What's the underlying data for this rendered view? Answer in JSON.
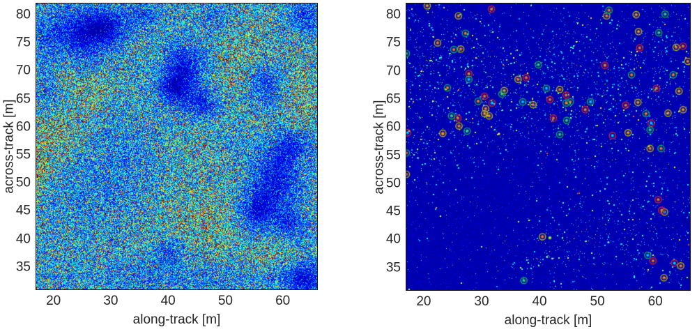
{
  "page": {
    "background": "#ffffff"
  },
  "chart_data": [
    {
      "id": "sonar-intensity-image",
      "type": "heatmap",
      "title": "",
      "xlabel": "along-track [m]",
      "ylabel": "across-track [m]",
      "xlim": [
        17,
        66
      ],
      "ylim": [
        31,
        82
      ],
      "xticks": [
        20,
        30,
        40,
        50,
        60
      ],
      "yticks": [
        35,
        40,
        45,
        50,
        55,
        60,
        65,
        70,
        75,
        80
      ],
      "colormap": "jet",
      "grid": false,
      "legend": "none",
      "description": "Speckled sonar/SAR seafloor intensity image (jet colormap): light-blue/cyan speckle background with darker navy rock/shadow patches and bright yellow-green reflective streaks.",
      "base_level": 0.4,
      "bright_regions": [
        {
          "x": 20,
          "y": 60,
          "rx": 3,
          "ry": 4.5,
          "a": 0.22
        },
        {
          "x": 26.5,
          "y": 66.5,
          "rx": 2.5,
          "ry": 2.5,
          "a": 0.18
        },
        {
          "x": 22,
          "y": 70.5,
          "rx": 1.5,
          "ry": 4,
          "a": 0.14
        },
        {
          "x": 17.5,
          "y": 52,
          "rx": 1.2,
          "ry": 2.5,
          "a": 0.25
        },
        {
          "x": 46,
          "y": 43,
          "rx": 6,
          "ry": 4,
          "a": 0.13
        },
        {
          "x": 59.5,
          "y": 38,
          "rx": 3.5,
          "ry": 2.5,
          "a": 0.14
        },
        {
          "x": 53,
          "y": 71.5,
          "rx": 3.5,
          "ry": 4,
          "a": 0.1
        },
        {
          "x": 63,
          "y": 62,
          "rx": 2,
          "ry": 6,
          "a": 0.1
        },
        {
          "x": 55,
          "y": 62,
          "rx": 8,
          "ry": 10,
          "a": 0.05
        },
        {
          "x": 44,
          "y": 56,
          "rx": 5,
          "ry": 4,
          "a": 0.06
        }
      ],
      "dark_regions": [
        {
          "x": 23,
          "y": 75.5,
          "rx": 4.5,
          "ry": 4,
          "a": 0.3
        },
        {
          "x": 20,
          "y": 65,
          "rx": 2.5,
          "ry": 3,
          "a": 0.22
        },
        {
          "x": 29.5,
          "y": 78,
          "rx": 3,
          "ry": 2.5,
          "a": 0.25
        },
        {
          "x": 36,
          "y": 80,
          "rx": 2,
          "ry": 1.5,
          "a": 0.18
        },
        {
          "x": 43,
          "y": 70.5,
          "rx": 3,
          "ry": 3.5,
          "a": 0.3
        },
        {
          "x": 46,
          "y": 64,
          "rx": 2.5,
          "ry": 2,
          "a": 0.25
        },
        {
          "x": 40.5,
          "y": 66.5,
          "rx": 2,
          "ry": 2,
          "a": 0.2
        },
        {
          "x": 57,
          "y": 67.5,
          "rx": 2.5,
          "ry": 3,
          "a": 0.28
        },
        {
          "x": 64,
          "y": 79.5,
          "rx": 2.5,
          "ry": 2,
          "a": 0.22
        },
        {
          "x": 59,
          "y": 51,
          "rx": 3.5,
          "ry": 4.5,
          "a": 0.3
        },
        {
          "x": 62.5,
          "y": 57,
          "rx": 2.5,
          "ry": 2.5,
          "a": 0.25
        },
        {
          "x": 55,
          "y": 44.5,
          "rx": 2.5,
          "ry": 3,
          "a": 0.28
        },
        {
          "x": 61.5,
          "y": 42,
          "rx": 2.5,
          "ry": 2.5,
          "a": 0.22
        },
        {
          "x": 63.5,
          "y": 33,
          "rx": 3,
          "ry": 2.5,
          "a": 0.28
        },
        {
          "x": 40,
          "y": 38,
          "rx": 2,
          "ry": 2,
          "a": 0.22
        },
        {
          "x": 34,
          "y": 55,
          "rx": 7,
          "ry": 6,
          "a": 0.1
        },
        {
          "x": 25,
          "y": 47,
          "rx": 6,
          "ry": 5,
          "a": 0.08
        },
        {
          "x": 42,
          "y": 33,
          "rx": 14,
          "ry": 2,
          "a": 0.12
        },
        {
          "x": 52,
          "y": 57.5,
          "rx": 3.5,
          "ry": 2.5,
          "a": 0.1
        },
        {
          "x": 48,
          "y": 80,
          "rx": 2,
          "ry": 1.5,
          "a": 0.15
        }
      ]
    },
    {
      "id": "detection-map",
      "type": "scatter",
      "title": "",
      "xlabel": "along-track [m]",
      "ylabel": "across-track [m]",
      "xlim": [
        17,
        66
      ],
      "ylim": [
        31,
        82
      ],
      "xticks": [
        20,
        30,
        40,
        50,
        60
      ],
      "yticks": [
        35,
        40,
        45,
        50,
        55,
        60,
        65,
        70,
        75,
        80
      ],
      "colormap": "jet",
      "grid": false,
      "legend": "none",
      "description": "Dark navy detection map of the same scene: sparse cyan speckle highlights plus circled detections (green, red and yellow rings around bright contacts).",
      "background_level": 0.045,
      "dot_count": 2600,
      "classes": {
        "g": "#00b44c",
        "r": "#e02020",
        "y": "#bdb300"
      },
      "density_regions": [
        {
          "x": 30,
          "y": 64,
          "rx": 14,
          "ry": 7,
          "a": 0.55
        },
        {
          "x": 52,
          "y": 66,
          "rx": 12,
          "ry": 6,
          "a": 0.5
        },
        {
          "x": 58,
          "y": 45,
          "rx": 9,
          "ry": 9,
          "a": 0.5
        },
        {
          "x": 47,
          "y": 38,
          "rx": 6,
          "ry": 4,
          "a": 0.35
        },
        {
          "x": 40,
          "y": 37,
          "rx": 3,
          "ry": 3,
          "a": 0.5
        },
        {
          "x": 19,
          "y": 55,
          "rx": 2.5,
          "ry": 4,
          "a": 0.7
        },
        {
          "x": 19,
          "y": 77,
          "rx": 4,
          "ry": 5,
          "a": 0.45
        },
        {
          "x": 45,
          "y": 75,
          "rx": 10,
          "ry": 6,
          "a": 0.3
        },
        {
          "x": 62,
          "y": 75,
          "rx": 5,
          "ry": 6,
          "a": 0.35
        },
        {
          "x": 25,
          "y": 70,
          "rx": 6,
          "ry": 5,
          "a": 0.4
        }
      ],
      "bright_spots": [
        {
          "x": 41.8,
          "y": 40.3,
          "r": 3.5,
          "color": "#80e000"
        },
        {
          "x": 41.3,
          "y": 36.9,
          "r": 2.5,
          "color": "#40e0a0"
        },
        {
          "x": 42.2,
          "y": 36.6,
          "r": 2.0,
          "color": "#60e080"
        },
        {
          "x": 51.9,
          "y": 39.5,
          "r": 2.5,
          "color": "#00c8ff"
        },
        {
          "x": 23.3,
          "y": 58.8,
          "r": 3.0,
          "color": "#ff9000"
        },
        {
          "x": 33.0,
          "y": 58.8,
          "r": 2.5,
          "color": "#ffb000"
        },
        {
          "x": 19.0,
          "y": 54.5,
          "r": 2.0,
          "color": "#00c8ff"
        }
      ],
      "detections": [
        [
          20.6,
          81.6,
          "y"
        ],
        [
          26.0,
          79.8,
          "y"
        ],
        [
          22.4,
          75.0,
          "y"
        ],
        [
          26.4,
          73.9,
          "y"
        ],
        [
          36.3,
          68.5,
          "y"
        ],
        [
          33.9,
          66.5,
          "y"
        ],
        [
          43.5,
          66.7,
          "y"
        ],
        [
          38.9,
          64.0,
          "y"
        ],
        [
          30.7,
          63.3,
          "y"
        ],
        [
          30.5,
          62.4,
          "y"
        ],
        [
          31.3,
          62.0,
          "y"
        ],
        [
          26.1,
          60.2,
          "y"
        ],
        [
          23.3,
          58.9,
          "y"
        ],
        [
          51.6,
          79.8,
          "y"
        ],
        [
          56.7,
          80.0,
          "y"
        ],
        [
          57.1,
          77.0,
          "y"
        ],
        [
          63.6,
          74.2,
          "y"
        ],
        [
          65.6,
          71.7,
          "y"
        ],
        [
          64.1,
          66.4,
          "y"
        ],
        [
          57.0,
          64.4,
          "y"
        ],
        [
          64.8,
          63.1,
          "y"
        ],
        [
          62.2,
          62.5,
          "y"
        ],
        [
          55.3,
          59.0,
          "y"
        ],
        [
          59.1,
          56.2,
          "y"
        ],
        [
          17.0,
          51.6,
          "y"
        ],
        [
          40.5,
          40.5,
          "y"
        ],
        [
          61.6,
          44.9,
          "y"
        ],
        [
          64.4,
          35.3,
          "y"
        ],
        [
          61.5,
          33.2,
          "y"
        ],
        [
          31.7,
          81.0,
          "r"
        ],
        [
          27.8,
          69.5,
          "r"
        ],
        [
          37.7,
          68.8,
          "r"
        ],
        [
          30.5,
          65.5,
          "r"
        ],
        [
          31.8,
          64.3,
          "r"
        ],
        [
          25.9,
          61.6,
          "r"
        ],
        [
          17.2,
          59.0,
          "r"
        ],
        [
          64.8,
          74.4,
          "r"
        ],
        [
          57.3,
          74.1,
          "r"
        ],
        [
          51.3,
          71.0,
          "r"
        ],
        [
          44.6,
          65.7,
          "r"
        ],
        [
          41.8,
          64.9,
          "r"
        ],
        [
          60.2,
          66.9,
          "r"
        ],
        [
          54.9,
          63.9,
          "r"
        ],
        [
          47.9,
          63.1,
          "r"
        ],
        [
          42.4,
          61.6,
          "r"
        ],
        [
          59.3,
          60.7,
          "r"
        ],
        [
          52.6,
          58.5,
          "r"
        ],
        [
          60.5,
          47.1,
          "r"
        ],
        [
          61.1,
          45.2,
          "r"
        ],
        [
          59.6,
          36.2,
          "r"
        ],
        [
          63.3,
          35.8,
          "r"
        ],
        [
          27.2,
          76.7,
          "g"
        ],
        [
          25.2,
          73.8,
          "g"
        ],
        [
          17.0,
          73.1,
          "g"
        ],
        [
          39.8,
          71.1,
          "g"
        ],
        [
          27.8,
          68.5,
          "g"
        ],
        [
          24.1,
          67.0,
          "g"
        ],
        [
          41.2,
          66.9,
          "g"
        ],
        [
          33.5,
          65.9,
          "g"
        ],
        [
          29.4,
          64.6,
          "g"
        ],
        [
          37.1,
          64.5,
          "g"
        ],
        [
          24.8,
          62.0,
          "g"
        ],
        [
          27.5,
          59.3,
          "g"
        ],
        [
          52.0,
          80.8,
          "g"
        ],
        [
          61.7,
          80.1,
          "g"
        ],
        [
          60.6,
          76.8,
          "g"
        ],
        [
          55.9,
          69.3,
          "g"
        ],
        [
          63.1,
          69.3,
          "g"
        ],
        [
          45.3,
          64.5,
          "g"
        ],
        [
          44.6,
          64.3,
          "g"
        ],
        [
          48.8,
          64.5,
          "g"
        ],
        [
          58.4,
          62.4,
          "g"
        ],
        [
          44.7,
          61.2,
          "g"
        ],
        [
          59.1,
          59.5,
          "g"
        ],
        [
          61.0,
          56.2,
          "g"
        ],
        [
          43.5,
          58.7,
          "g"
        ],
        [
          17.0,
          55.4,
          "g"
        ],
        [
          37.3,
          32.7,
          "g"
        ],
        [
          58.7,
          37.2,
          "g"
        ]
      ]
    }
  ]
}
